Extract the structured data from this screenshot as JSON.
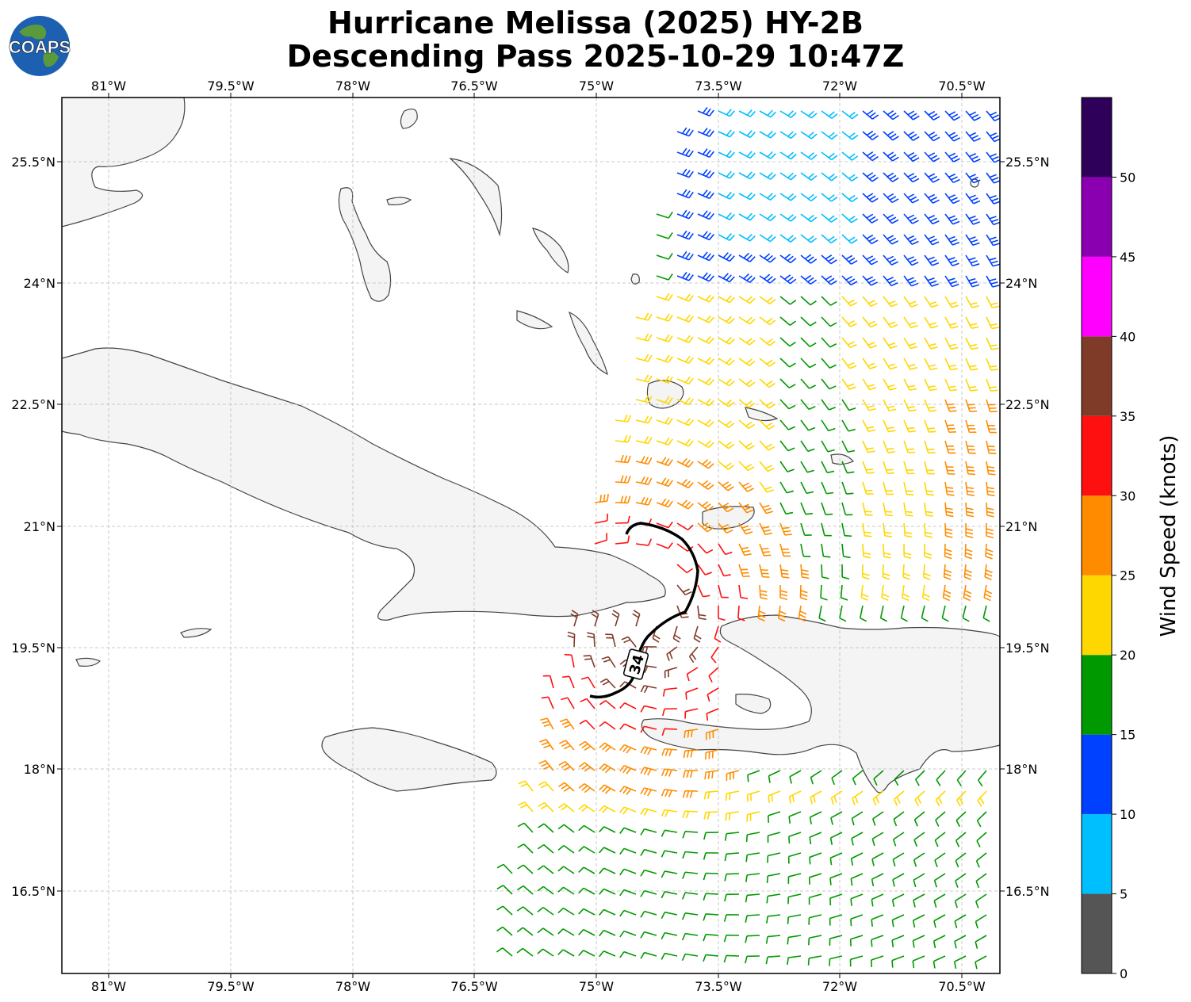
{
  "title_line1": "Hurricane Melissa (2025) HY-2B",
  "title_line2": "Descending Pass 2025-10-29 10:47Z",
  "logo_text": "COAPS",
  "storm_label": "34",
  "lon_ticks": [
    "81°W",
    "79.5°W",
    "78°W",
    "76.5°W",
    "75°W",
    "73.5°W",
    "72°W",
    "70.5°W"
  ],
  "lat_ticks": [
    "25.5°N",
    "24°N",
    "22.5°N",
    "21°N",
    "19.5°N",
    "18°N",
    "16.5°N"
  ],
  "colorbar": {
    "label": "Wind Speed (knots)",
    "ticks": [
      "0",
      "5",
      "10",
      "15",
      "20",
      "25",
      "30",
      "35",
      "40",
      "45",
      "50"
    ],
    "colors": [
      "#555555",
      "#00bfff",
      "#0040ff",
      "#009900",
      "#ffd700",
      "#ff8c00",
      "#ff1010",
      "#7f3a28",
      "#ff00ff",
      "#8a00b0",
      "#2e0059"
    ]
  },
  "land_color": "#f4f4f4",
  "coast_color": "#444444"
}
